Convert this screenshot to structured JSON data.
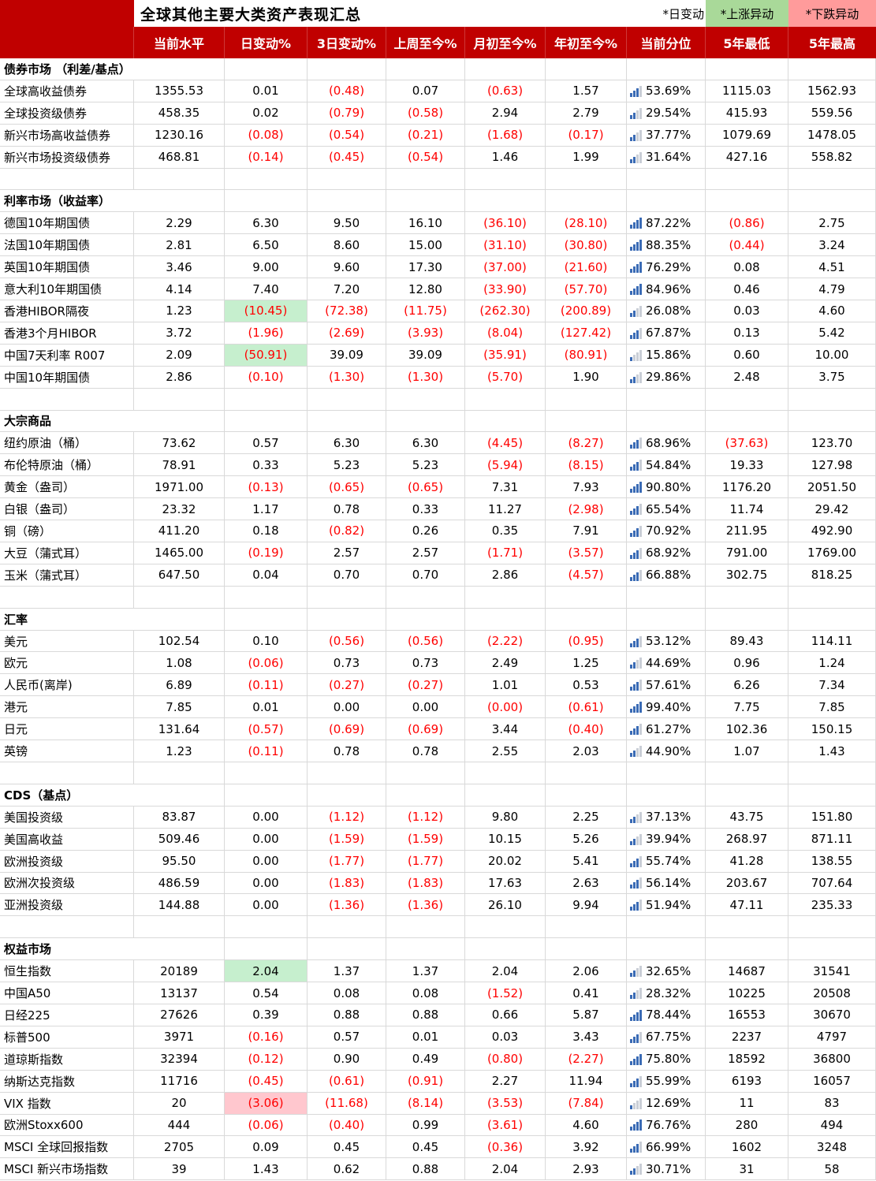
{
  "colors": {
    "header_red": "#C00000",
    "grid": "#D9D9D9",
    "negative": "#FF0000",
    "cell_up_bg": "#C6EFCE",
    "cell_down_bg": "#FFC7CE",
    "legend_up_bg": "#A9D999",
    "legend_down_bg": "#FF9B9B",
    "bar_blue": "#3A6BB5",
    "bar_gray": "#C9CED6"
  },
  "chart_data": {
    "type": "table",
    "title": "全球其他主要大类资产表现汇总",
    "legend": [
      {
        "label": "*日变动",
        "style": "plain"
      },
      {
        "label": "*上涨异动",
        "style": "up"
      },
      {
        "label": "*下跌异动",
        "style": "down"
      }
    ],
    "columns": [
      "当前水平",
      "日变动%",
      "3日变动%",
      "上周至今%",
      "月初至今%",
      "年初至今%",
      "当前分位",
      "5年最低",
      "5年最高"
    ],
    "sections": [
      {
        "name": "债券市场 （利差/基点）",
        "rows": [
          {
            "label": "全球高收益债券",
            "values": [
              "1355.53",
              "0.01",
              "(0.48)",
              "0.07",
              "(0.63)",
              "1.57",
              "53.69%",
              "1115.03",
              "1562.93"
            ]
          },
          {
            "label": "全球投资级债券",
            "values": [
              "458.35",
              "0.02",
              "(0.79)",
              "(0.58)",
              "2.94",
              "2.79",
              "29.54%",
              "415.93",
              "559.56"
            ]
          },
          {
            "label": "新兴市场高收益债券",
            "values": [
              "1230.16",
              "(0.08)",
              "(0.54)",
              "(0.21)",
              "(1.68)",
              "(0.17)",
              "37.77%",
              "1079.69",
              "1478.05"
            ]
          },
          {
            "label": "新兴市场投资级债券",
            "values": [
              "468.81",
              "(0.14)",
              "(0.45)",
              "(0.54)",
              "1.46",
              "1.99",
              "31.64%",
              "427.16",
              "558.82"
            ]
          }
        ]
      },
      {
        "name": "利率市场（收益率）",
        "rows": [
          {
            "label": "德国10年期国债",
            "values": [
              "2.29",
              "6.30",
              "9.50",
              "16.10",
              "(36.10)",
              "(28.10)",
              "87.22%",
              "(0.86)",
              "2.75"
            ]
          },
          {
            "label": "法国10年期国债",
            "values": [
              "2.81",
              "6.50",
              "8.60",
              "15.00",
              "(31.10)",
              "(30.80)",
              "88.35%",
              "(0.44)",
              "3.24"
            ]
          },
          {
            "label": "英国10年期国债",
            "values": [
              "3.46",
              "9.00",
              "9.60",
              "17.30",
              "(37.00)",
              "(21.60)",
              "76.29%",
              "0.08",
              "4.51"
            ]
          },
          {
            "label": "意大利10年期国债",
            "values": [
              "4.14",
              "7.40",
              "7.20",
              "12.80",
              "(33.90)",
              "(57.70)",
              "84.96%",
              "0.46",
              "4.79"
            ]
          },
          {
            "label": "香港HIBOR隔夜",
            "values": [
              "1.23",
              "(10.45)",
              "(72.38)",
              "(11.75)",
              "(262.30)",
              "(200.89)",
              "26.08%",
              "0.03",
              "4.60"
            ],
            "highlight": {
              "col": 1,
              "type": "up"
            }
          },
          {
            "label": "香港3个月HIBOR",
            "values": [
              "3.72",
              "(1.96)",
              "(2.69)",
              "(3.93)",
              "(8.04)",
              "(127.42)",
              "67.87%",
              "0.13",
              "5.42"
            ]
          },
          {
            "label": "中国7天利率 R007",
            "values": [
              "2.09",
              "(50.91)",
              "39.09",
              "39.09",
              "(35.91)",
              "(80.91)",
              "15.86%",
              "0.60",
              "10.00"
            ],
            "highlight": {
              "col": 1,
              "type": "up"
            }
          },
          {
            "label": "中国10年期国债",
            "values": [
              "2.86",
              "(0.10)",
              "(1.30)",
              "(1.30)",
              "(5.70)",
              "1.90",
              "29.86%",
              "2.48",
              "3.75"
            ]
          }
        ]
      },
      {
        "name": "大宗商品",
        "rows": [
          {
            "label": "纽约原油（桶）",
            "values": [
              "73.62",
              "0.57",
              "6.30",
              "6.30",
              "(4.45)",
              "(8.27)",
              "68.96%",
              "(37.63)",
              "123.70"
            ]
          },
          {
            "label": "布伦特原油（桶）",
            "values": [
              "78.91",
              "0.33",
              "5.23",
              "5.23",
              "(5.94)",
              "(8.15)",
              "54.84%",
              "19.33",
              "127.98"
            ]
          },
          {
            "label": "黄金（盎司）",
            "values": [
              "1971.00",
              "(0.13)",
              "(0.65)",
              "(0.65)",
              "7.31",
              "7.93",
              "90.80%",
              "1176.20",
              "2051.50"
            ]
          },
          {
            "label": "白银（盎司）",
            "values": [
              "23.32",
              "1.17",
              "0.78",
              "0.33",
              "11.27",
              "(2.98)",
              "65.54%",
              "11.74",
              "29.42"
            ]
          },
          {
            "label": "铜（磅）",
            "values": [
              "411.20",
              "0.18",
              "(0.82)",
              "0.26",
              "0.35",
              "7.91",
              "70.92%",
              "211.95",
              "492.90"
            ]
          },
          {
            "label": "大豆（蒲式耳）",
            "values": [
              "1465.00",
              "(0.19)",
              "2.57",
              "2.57",
              "(1.71)",
              "(3.57)",
              "68.92%",
              "791.00",
              "1769.00"
            ]
          },
          {
            "label": "玉米（蒲式耳）",
            "values": [
              "647.50",
              "0.04",
              "0.70",
              "0.70",
              "2.86",
              "(4.57)",
              "66.88%",
              "302.75",
              "818.25"
            ]
          }
        ]
      },
      {
        "name": "汇率",
        "rows": [
          {
            "label": "美元",
            "values": [
              "102.54",
              "0.10",
              "(0.56)",
              "(0.56)",
              "(2.22)",
              "(0.95)",
              "53.12%",
              "89.43",
              "114.11"
            ]
          },
          {
            "label": "欧元",
            "values": [
              "1.08",
              "(0.06)",
              "0.73",
              "0.73",
              "2.49",
              "1.25",
              "44.69%",
              "0.96",
              "1.24"
            ]
          },
          {
            "label": "人民币(离岸)",
            "values": [
              "6.89",
              "(0.11)",
              "(0.27)",
              "(0.27)",
              "1.01",
              "0.53",
              "57.61%",
              "6.26",
              "7.34"
            ]
          },
          {
            "label": "港元",
            "values": [
              "7.85",
              "0.01",
              "0.00",
              "0.00",
              "(0.00)",
              "(0.61)",
              "99.40%",
              "7.75",
              "7.85"
            ]
          },
          {
            "label": "日元",
            "values": [
              "131.64",
              "(0.57)",
              "(0.69)",
              "(0.69)",
              "3.44",
              "(0.40)",
              "61.27%",
              "102.36",
              "150.15"
            ]
          },
          {
            "label": "英镑",
            "values": [
              "1.23",
              "(0.11)",
              "0.78",
              "0.78",
              "2.55",
              "2.03",
              "44.90%",
              "1.07",
              "1.43"
            ]
          }
        ]
      },
      {
        "name": "CDS（基点）",
        "rows": [
          {
            "label": "美国投资级",
            "values": [
              "83.87",
              "0.00",
              "(1.12)",
              "(1.12)",
              "9.80",
              "2.25",
              "37.13%",
              "43.75",
              "151.80"
            ]
          },
          {
            "label": "美国高收益",
            "values": [
              "509.46",
              "0.00",
              "(1.59)",
              "(1.59)",
              "10.15",
              "5.26",
              "39.94%",
              "268.97",
              "871.11"
            ]
          },
          {
            "label": "欧洲投资级",
            "values": [
              "95.50",
              "0.00",
              "(1.77)",
              "(1.77)",
              "20.02",
              "5.41",
              "55.74%",
              "41.28",
              "138.55"
            ]
          },
          {
            "label": "欧洲次投资级",
            "values": [
              "486.59",
              "0.00",
              "(1.83)",
              "(1.83)",
              "17.63",
              "2.63",
              "56.14%",
              "203.67",
              "707.64"
            ]
          },
          {
            "label": "亚洲投资级",
            "values": [
              "144.88",
              "0.00",
              "(1.36)",
              "(1.36)",
              "26.10",
              "9.94",
              "51.94%",
              "47.11",
              "235.33"
            ]
          }
        ]
      },
      {
        "name": "权益市场",
        "rows": [
          {
            "label": "恒生指数",
            "values": [
              "20189",
              "2.04",
              "1.37",
              "1.37",
              "2.04",
              "2.06",
              "32.65%",
              "14687",
              "31541"
            ],
            "highlight": {
              "col": 1,
              "type": "up"
            }
          },
          {
            "label": "中国A50",
            "values": [
              "13137",
              "0.54",
              "0.08",
              "0.08",
              "(1.52)",
              "0.41",
              "28.32%",
              "10225",
              "20508"
            ]
          },
          {
            "label": "日经225",
            "values": [
              "27626",
              "0.39",
              "0.88",
              "0.88",
              "0.66",
              "5.87",
              "78.44%",
              "16553",
              "30670"
            ]
          },
          {
            "label": "标普500",
            "values": [
              "3971",
              "(0.16)",
              "0.57",
              "0.01",
              "0.03",
              "3.43",
              "67.75%",
              "2237",
              "4797"
            ]
          },
          {
            "label": "道琼斯指数",
            "values": [
              "32394",
              "(0.12)",
              "0.90",
              "0.49",
              "(0.80)",
              "(2.27)",
              "75.80%",
              "18592",
              "36800"
            ]
          },
          {
            "label": "纳斯达克指数",
            "values": [
              "11716",
              "(0.45)",
              "(0.61)",
              "(0.91)",
              "2.27",
              "11.94",
              "55.99%",
              "6193",
              "16057"
            ]
          },
          {
            "label": "VIX 指数",
            "values": [
              "20",
              "(3.06)",
              "(11.68)",
              "(8.14)",
              "(3.53)",
              "(7.84)",
              "12.69%",
              "11",
              "83"
            ],
            "highlight": {
              "col": 1,
              "type": "down"
            }
          },
          {
            "label": "欧洲Stoxx600",
            "values": [
              "444",
              "(0.06)",
              "(0.40)",
              "0.99",
              "(3.61)",
              "4.60",
              "76.76%",
              "280",
              "494"
            ]
          },
          {
            "label": "MSCI 全球回报指数",
            "values": [
              "2705",
              "0.09",
              "0.45",
              "0.45",
              "(0.36)",
              "3.92",
              "66.99%",
              "1602",
              "3248"
            ]
          },
          {
            "label": "MSCI 新兴市场指数",
            "values": [
              "39",
              "1.43",
              "0.62",
              "0.88",
              "2.04",
              "2.93",
              "30.71%",
              "31",
              "58"
            ]
          }
        ]
      }
    ]
  }
}
